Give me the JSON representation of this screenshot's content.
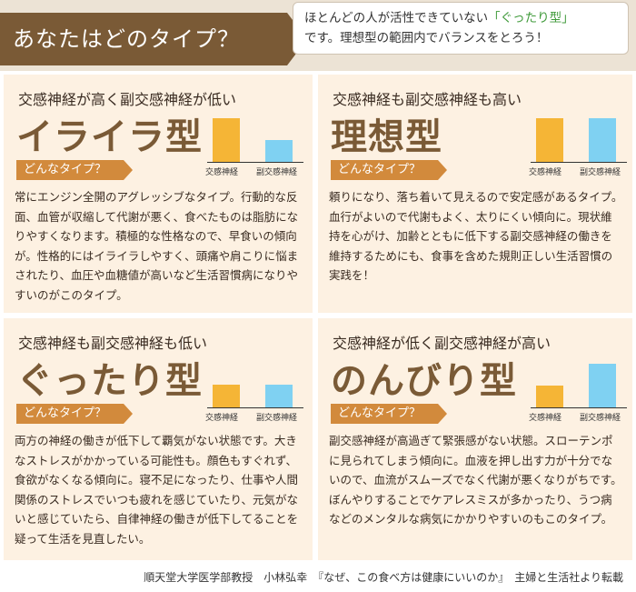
{
  "header": {
    "title": "あなたはどのタイプ？",
    "callout_line1_pre": "ほとんどの人が活性できていない",
    "callout_line1_highlight": "「ぐったり型」",
    "callout_line2": "です。理想型の範囲内でバランスをとろう！",
    "highlight_color": "#3f9a3a"
  },
  "chart_labels": {
    "sympathetic": "交感神経",
    "parasympathetic": "副交感神経"
  },
  "colors": {
    "sympathetic": "#f5b536",
    "parasympathetic": "#7fd1f2",
    "brown": "#7a5a36",
    "tag": "#d28a3c"
  },
  "types": [
    {
      "subtitle": "交感神経が高く副交感神経が低い",
      "name": "イライラ型",
      "tag": "どんなタイプ？",
      "levels": {
        "sympathetic": 0.95,
        "parasympathetic": 0.48
      },
      "body": "常にエンジン全開のアグレッシブなタイプ。行動的な反面、血管が収縮して代謝が悪く、食べたものは脂肪になりやすくなります。積極的な性格なので、早食いの傾向が。性格的にはイライラしやすく、頭痛や肩こりに悩まされたり、血圧や血糖値が高いなど生活習慣病になりやすいのがこのタイプ。"
    },
    {
      "subtitle": "交感神経も副交感神経も高い",
      "name": "理想型",
      "tag": "どんなタイプ？",
      "levels": {
        "sympathetic": 0.95,
        "parasympathetic": 0.95
      },
      "body": "頼りになり、落ち着いて見えるので安定感があるタイプ。血行がよいので代謝もよく、太りにくい傾向に。現状維持を心がけ、加齢とともに低下する副交感神経の働きを維持するためにも、食事を含めた規則正しい生活習慣の実践を！"
    },
    {
      "subtitle": "交感神経も副交感神経も低い",
      "name": "ぐったり型",
      "tag": "どんなタイプ？",
      "levels": {
        "sympathetic": 0.5,
        "parasympathetic": 0.5
      },
      "body": "両方の神経の働きが低下して覇気がない状態です。大きなストレスがかかっている可能性も。顔色もすぐれず、食欲がなくなる傾向に。寝不足になったり、仕事や人間関係のストレスでいつも疲れを感じていたり、元気がないと感じていたら、自律神経の働きが低下してることを疑って生活を見直したい。"
    },
    {
      "subtitle": "交感神経が低く副交感神経が高い",
      "name": "のんびり型",
      "tag": "どんなタイプ？",
      "levels": {
        "sympathetic": 0.48,
        "parasympathetic": 0.95
      },
      "body": "副交感神経が高過ぎて緊張感がない状態。スローテンポに見られてしまう傾向に。血液を押し出す力が十分でないので、血流がスムーズでなく代謝が悪くなりがちです。ぼんやりすることでケアレスミスが多かったり、うつ病などのメンタルな病気にかかりやすいのもこのタイプ。"
    }
  ],
  "footer": "順天堂大学医学部教授　小林弘幸　『なぜ、この食べ方は健康にいいのか』　主婦と生活社より転載"
}
